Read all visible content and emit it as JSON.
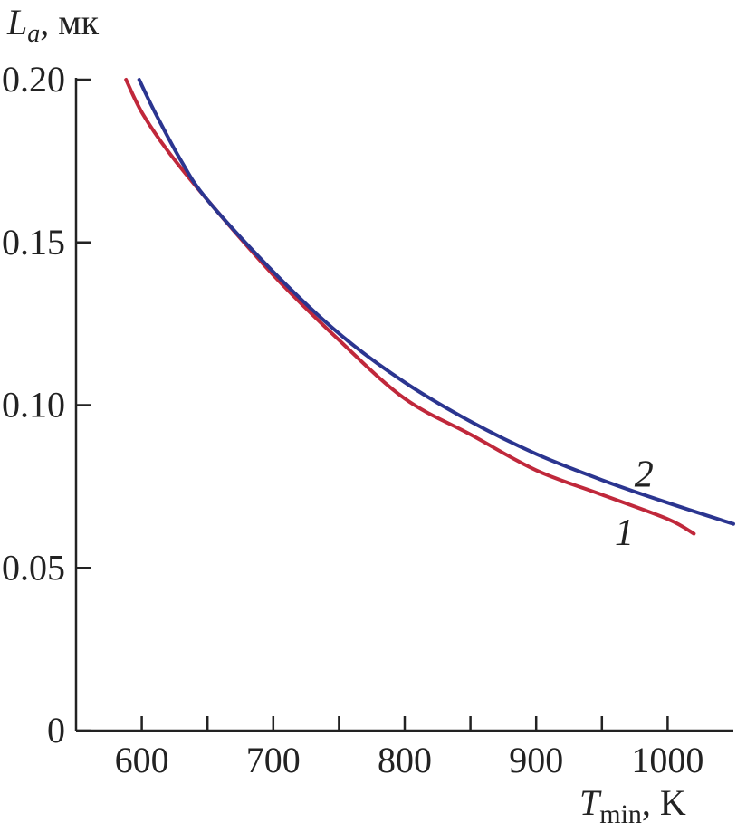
{
  "chart_data": {
    "type": "line",
    "ylabel": {
      "symbol": "L",
      "subscript": "a",
      "unit": ", мк"
    },
    "xlabel": {
      "symbol": "T",
      "subscript": "min",
      "unit": ", K"
    },
    "xlim": [
      550,
      1050
    ],
    "ylim": [
      0,
      0.2
    ],
    "xticks": [
      {
        "value": 600,
        "label": "600"
      },
      {
        "value": 700,
        "label": "700"
      },
      {
        "value": 800,
        "label": "800"
      },
      {
        "value": 900,
        "label": "900"
      },
      {
        "value": 1000,
        "label": "1000"
      }
    ],
    "xminor_ticks": [
      650,
      750,
      850,
      950
    ],
    "yticks": [
      {
        "value": 0,
        "label": "0"
      },
      {
        "value": 0.05,
        "label": "0.05"
      },
      {
        "value": 0.1,
        "label": "0.10"
      },
      {
        "value": 0.15,
        "label": "0.15"
      },
      {
        "value": 0.2,
        "label": "0.20"
      }
    ],
    "grid": false,
    "series": [
      {
        "label": "1",
        "color": "#c0283b",
        "x": [
          588,
          600,
          620,
          650,
          700,
          750,
          800,
          850,
          900,
          950,
          1000,
          1020
        ],
        "y": [
          0.2,
          0.19,
          0.178,
          0.163,
          0.14,
          0.12,
          0.102,
          0.091,
          0.08,
          0.0725,
          0.065,
          0.0605
        ],
        "label_at": {
          "x": 967,
          "y": 0.057
        }
      },
      {
        "label": "2",
        "color": "#2b3590",
        "x": [
          598,
          610,
          630,
          650,
          700,
          750,
          800,
          850,
          900,
          950,
          1000,
          1050
        ],
        "y": [
          0.2,
          0.19,
          0.175,
          0.163,
          0.141,
          0.122,
          0.107,
          0.095,
          0.085,
          0.077,
          0.07,
          0.0635
        ],
        "label_at": {
          "x": 982,
          "y": 0.075
        }
      }
    ]
  }
}
